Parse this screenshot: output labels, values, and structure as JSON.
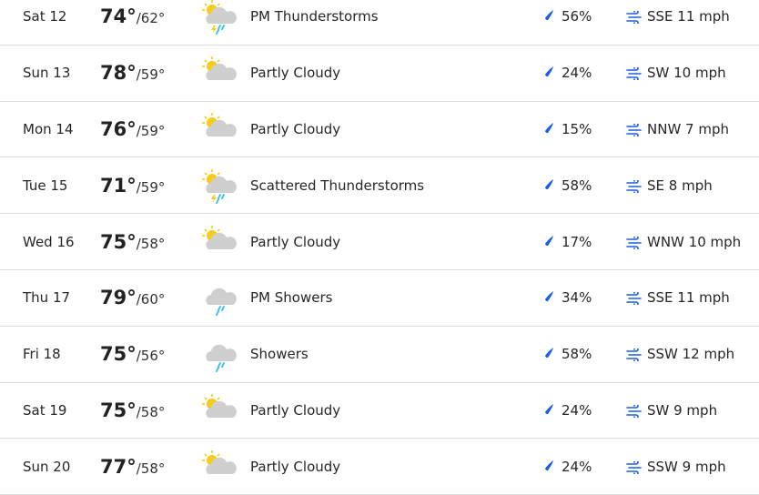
{
  "colors": {
    "accent": "#1a5fe0",
    "sun": "#f5cc18",
    "cloud": "#cfcfcf",
    "rain": "#48c4e8"
  },
  "days": [
    {
      "day": "Sat 12",
      "high": "74°",
      "low": "/62°",
      "icon": "thunderstorm-icon",
      "condition": "PM Thunderstorms",
      "precip": "56%",
      "wind": "SSE 11 mph"
    },
    {
      "day": "Sun 13",
      "high": "78°",
      "low": "/59°",
      "icon": "partly-cloudy-icon",
      "condition": "Partly Cloudy",
      "precip": "24%",
      "wind": "SW 10 mph"
    },
    {
      "day": "Mon 14",
      "high": "76°",
      "low": "/59°",
      "icon": "partly-cloudy-icon",
      "condition": "Partly Cloudy",
      "precip": "15%",
      "wind": "NNW 7 mph"
    },
    {
      "day": "Tue 15",
      "high": "71°",
      "low": "/59°",
      "icon": "thunderstorm-icon",
      "condition": "Scattered Thunderstorms",
      "precip": "58%",
      "wind": "SE 8 mph"
    },
    {
      "day": "Wed 16",
      "high": "75°",
      "low": "/58°",
      "icon": "partly-cloudy-icon",
      "condition": "Partly Cloudy",
      "precip": "17%",
      "wind": "WNW 10 mph"
    },
    {
      "day": "Thu 17",
      "high": "79°",
      "low": "/60°",
      "icon": "showers-icon",
      "condition": "PM Showers",
      "precip": "34%",
      "wind": "SSE 11 mph"
    },
    {
      "day": "Fri 18",
      "high": "75°",
      "low": "/56°",
      "icon": "showers-icon",
      "condition": "Showers",
      "precip": "58%",
      "wind": "SSW 12 mph"
    },
    {
      "day": "Sat 19",
      "high": "75°",
      "low": "/58°",
      "icon": "partly-cloudy-icon",
      "condition": "Partly Cloudy",
      "precip": "24%",
      "wind": "SW 9 mph"
    },
    {
      "day": "Sun 20",
      "high": "77°",
      "low": "/58°",
      "icon": "partly-cloudy-icon",
      "condition": "Partly Cloudy",
      "precip": "24%",
      "wind": "SSW 9 mph"
    }
  ]
}
